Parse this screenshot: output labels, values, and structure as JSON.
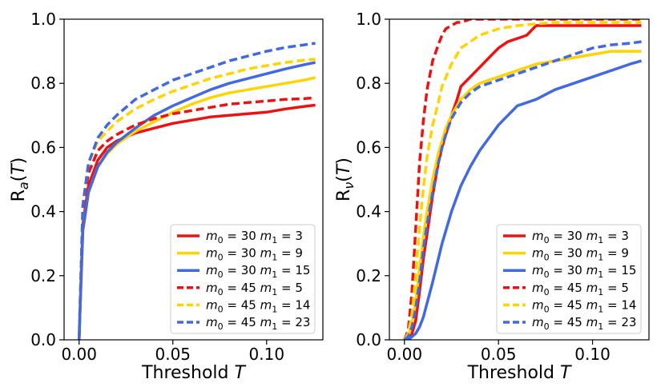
{
  "chart_data": [
    {
      "type": "line",
      "xlabel": "Threshold T",
      "ylabel": "Ra(T)",
      "xlim": [
        -0.008,
        0.13
      ],
      "ylim": [
        0,
        1.0
      ],
      "xticks": [
        0.0,
        0.05,
        0.1
      ],
      "xtick_labels": [
        "0.00",
        "0.05",
        "0.10"
      ],
      "yticks": [
        0.0,
        0.2,
        0.4,
        0.6,
        0.8,
        1.0
      ],
      "ytick_labels": [
        "0.0",
        "0.2",
        "0.4",
        "0.6",
        "0.8",
        "1.0"
      ],
      "legend": "lower-right",
      "series": [
        {
          "name": "m0 = 30  m1 = 3",
          "m0": "30",
          "m1": "3",
          "color": "#ee1111",
          "dash": "solid",
          "x": [
            0,
            0.002,
            0.005,
            0.01,
            0.015,
            0.02,
            0.03,
            0.04,
            0.05,
            0.06,
            0.07,
            0.08,
            0.09,
            0.1,
            0.11,
            0.12,
            0.126
          ],
          "y": [
            0,
            0.36,
            0.48,
            0.56,
            0.6,
            0.62,
            0.645,
            0.66,
            0.675,
            0.685,
            0.695,
            0.7,
            0.705,
            0.71,
            0.72,
            0.728,
            0.732
          ]
        },
        {
          "name": "m0 = 30  m1 = 9",
          "m0": "30",
          "m1": "9",
          "color": "#ffd400",
          "dash": "solid",
          "x": [
            0,
            0.002,
            0.005,
            0.01,
            0.015,
            0.02,
            0.03,
            0.04,
            0.05,
            0.06,
            0.07,
            0.08,
            0.09,
            0.1,
            0.11,
            0.12,
            0.126
          ],
          "y": [
            0,
            0.34,
            0.46,
            0.54,
            0.58,
            0.61,
            0.65,
            0.68,
            0.71,
            0.735,
            0.755,
            0.77,
            0.78,
            0.79,
            0.8,
            0.81,
            0.818
          ]
        },
        {
          "name": "m0 = 30  m1 = 15",
          "m0": "30",
          "m1": "15",
          "color": "#4169e1",
          "dash": "solid",
          "x": [
            0,
            0.002,
            0.005,
            0.01,
            0.015,
            0.02,
            0.03,
            0.04,
            0.05,
            0.06,
            0.07,
            0.08,
            0.09,
            0.1,
            0.11,
            0.12,
            0.126
          ],
          "y": [
            0,
            0.34,
            0.46,
            0.54,
            0.585,
            0.615,
            0.66,
            0.7,
            0.73,
            0.755,
            0.78,
            0.8,
            0.815,
            0.83,
            0.845,
            0.858,
            0.865
          ]
        },
        {
          "name": "m0 = 45  m1 = 5",
          "m0": "45",
          "m1": "5",
          "color": "#ee1111",
          "dash": "dashed",
          "x": [
            0,
            0.002,
            0.005,
            0.01,
            0.015,
            0.02,
            0.03,
            0.04,
            0.05,
            0.06,
            0.07,
            0.08,
            0.09,
            0.1,
            0.11,
            0.12,
            0.126
          ],
          "y": [
            0,
            0.4,
            0.52,
            0.59,
            0.62,
            0.64,
            0.67,
            0.69,
            0.705,
            0.715,
            0.725,
            0.735,
            0.74,
            0.745,
            0.75,
            0.752,
            0.755
          ]
        },
        {
          "name": "m0 = 45  m1 = 14",
          "m0": "45",
          "m1": "14",
          "color": "#ffd400",
          "dash": "dashed",
          "x": [
            0,
            0.002,
            0.005,
            0.01,
            0.015,
            0.02,
            0.03,
            0.04,
            0.05,
            0.06,
            0.07,
            0.08,
            0.09,
            0.1,
            0.11,
            0.12,
            0.126
          ],
          "y": [
            0,
            0.42,
            0.55,
            0.62,
            0.65,
            0.68,
            0.72,
            0.75,
            0.775,
            0.795,
            0.815,
            0.83,
            0.845,
            0.855,
            0.865,
            0.872,
            0.875
          ]
        },
        {
          "name": "m0 = 45  m1 = 23",
          "m0": "45",
          "m1": "23",
          "color": "#4169e1",
          "dash": "dashed",
          "x": [
            0,
            0.002,
            0.005,
            0.01,
            0.015,
            0.02,
            0.03,
            0.04,
            0.05,
            0.06,
            0.07,
            0.08,
            0.09,
            0.1,
            0.11,
            0.12,
            0.126
          ],
          "y": [
            0,
            0.42,
            0.55,
            0.63,
            0.67,
            0.7,
            0.75,
            0.78,
            0.81,
            0.83,
            0.85,
            0.87,
            0.885,
            0.9,
            0.912,
            0.92,
            0.925
          ]
        }
      ]
    },
    {
      "type": "line",
      "xlabel": "Threshold T",
      "ylabel": "Rv(T)",
      "xlim": [
        -0.008,
        0.13
      ],
      "ylim": [
        0,
        1.0
      ],
      "xticks": [
        0.0,
        0.05,
        0.1
      ],
      "xtick_labels": [
        "0.00",
        "0.05",
        "0.10"
      ],
      "yticks": [
        0.0,
        0.2,
        0.4,
        0.6,
        0.8,
        1.0
      ],
      "ytick_labels": [
        "0.0",
        "0.2",
        "0.4",
        "0.6",
        "0.8",
        "1.0"
      ],
      "legend": "lower-right",
      "series": [
        {
          "name": "m0 = 30  m1 = 3",
          "m0": "30",
          "m1": "3",
          "color": "#ee1111",
          "dash": "solid",
          "x": [
            0,
            0.002,
            0.004,
            0.006,
            0.008,
            0.01,
            0.012,
            0.015,
            0.018,
            0.02,
            0.022,
            0.025,
            0.028,
            0.03,
            0.035,
            0.04,
            0.045,
            0.05,
            0.055,
            0.06,
            0.065,
            0.07,
            0.075,
            0.08,
            0.126
          ],
          "y": [
            0,
            0,
            0.02,
            0.06,
            0.15,
            0.25,
            0.33,
            0.45,
            0.55,
            0.6,
            0.64,
            0.7,
            0.75,
            0.79,
            0.82,
            0.85,
            0.88,
            0.91,
            0.93,
            0.94,
            0.95,
            0.98,
            0.98,
            0.98,
            0.98
          ]
        },
        {
          "name": "m0 = 30  m1 = 9",
          "m0": "30",
          "m1": "9",
          "color": "#ffd400",
          "dash": "solid",
          "x": [
            0,
            0.002,
            0.004,
            0.006,
            0.008,
            0.01,
            0.012,
            0.015,
            0.018,
            0.02,
            0.022,
            0.025,
            0.028,
            0.03,
            0.035,
            0.04,
            0.05,
            0.06,
            0.07,
            0.08,
            0.09,
            0.1,
            0.11,
            0.12,
            0.126
          ],
          "y": [
            0,
            0.01,
            0.05,
            0.12,
            0.22,
            0.32,
            0.4,
            0.5,
            0.58,
            0.62,
            0.66,
            0.7,
            0.73,
            0.75,
            0.78,
            0.8,
            0.82,
            0.84,
            0.86,
            0.87,
            0.88,
            0.89,
            0.9,
            0.9,
            0.9
          ]
        },
        {
          "name": "m0 = 30  m1 = 15",
          "m0": "30",
          "m1": "15",
          "color": "#4169e1",
          "dash": "solid",
          "x": [
            0,
            0.002,
            0.004,
            0.006,
            0.008,
            0.01,
            0.015,
            0.02,
            0.025,
            0.03,
            0.035,
            0.04,
            0.045,
            0.05,
            0.055,
            0.06,
            0.07,
            0.08,
            0.09,
            0.1,
            0.11,
            0.12,
            0.126
          ],
          "y": [
            0,
            0,
            0.01,
            0.02,
            0.04,
            0.07,
            0.18,
            0.3,
            0.4,
            0.48,
            0.54,
            0.59,
            0.63,
            0.67,
            0.7,
            0.73,
            0.75,
            0.78,
            0.8,
            0.82,
            0.84,
            0.86,
            0.87
          ]
        },
        {
          "name": "m0 = 45  m1 = 5",
          "m0": "45",
          "m1": "5",
          "color": "#ee1111",
          "dash": "dashed",
          "x": [
            0,
            0.002,
            0.004,
            0.006,
            0.008,
            0.01,
            0.012,
            0.015,
            0.018,
            0.02,
            0.022,
            0.025,
            0.028,
            0.03,
            0.035,
            0.04,
            0.126
          ],
          "y": [
            0,
            0.03,
            0.15,
            0.35,
            0.55,
            0.68,
            0.78,
            0.87,
            0.92,
            0.95,
            0.97,
            0.98,
            0.99,
            0.99,
            1.0,
            1.0,
            1.0
          ]
        },
        {
          "name": "m0 = 45  m1 = 14",
          "m0": "45",
          "m1": "14",
          "color": "#ffd400",
          "dash": "dashed",
          "x": [
            0,
            0.002,
            0.004,
            0.006,
            0.008,
            0.01,
            0.012,
            0.015,
            0.018,
            0.02,
            0.025,
            0.03,
            0.035,
            0.04,
            0.05,
            0.06,
            0.07,
            0.08,
            0.1,
            0.126
          ],
          "y": [
            0,
            0.02,
            0.08,
            0.2,
            0.35,
            0.47,
            0.57,
            0.67,
            0.74,
            0.79,
            0.86,
            0.91,
            0.93,
            0.95,
            0.97,
            0.98,
            0.985,
            0.99,
            0.99,
            0.99
          ]
        },
        {
          "name": "m0 = 45  m1 = 23",
          "m0": "45",
          "m1": "23",
          "color": "#4169e1",
          "dash": "dashed",
          "x": [
            0,
            0.002,
            0.004,
            0.006,
            0.008,
            0.01,
            0.012,
            0.015,
            0.018,
            0.02,
            0.022,
            0.025,
            0.028,
            0.03,
            0.035,
            0.04,
            0.05,
            0.06,
            0.07,
            0.08,
            0.09,
            0.1,
            0.11,
            0.12,
            0.126
          ],
          "y": [
            0,
            0.01,
            0.04,
            0.1,
            0.18,
            0.28,
            0.36,
            0.46,
            0.55,
            0.6,
            0.64,
            0.69,
            0.72,
            0.74,
            0.77,
            0.79,
            0.81,
            0.83,
            0.85,
            0.87,
            0.89,
            0.91,
            0.92,
            0.925,
            0.93
          ]
        }
      ]
    }
  ]
}
